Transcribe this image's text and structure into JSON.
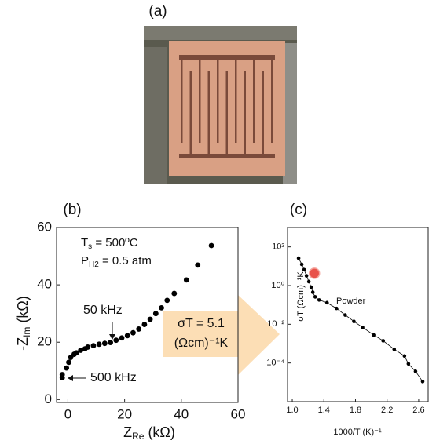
{
  "figure_a": {
    "label": "(a)"
  },
  "chart_data": [
    {
      "type": "scatter",
      "label": "(b)",
      "xlabel": {
        "main": "Z",
        "sub": "Re",
        "unit": " (kΩ)"
      },
      "ylabel": {
        "main": "-Z",
        "sub": "Im",
        "unit": " (kΩ)"
      },
      "xlim": [
        -4,
        60
      ],
      "xticks": [
        0,
        20,
        40,
        60
      ],
      "ylim": [
        -1,
        60
      ],
      "yticks": [
        0,
        20,
        40,
        60
      ],
      "series": [
        {
          "color": "#000000",
          "x": [
            -2,
            -2,
            -0.5,
            0.3,
            1,
            2.2,
            3,
            4.5,
            6,
            7,
            9,
            11,
            13,
            15,
            17,
            19,
            21,
            23,
            25,
            27,
            29,
            31,
            33,
            35,
            37.5,
            41.8,
            45.8,
            50.6
          ],
          "values": [
            7.6,
            8.7,
            11,
            13,
            14.7,
            15.8,
            16.3,
            17.2,
            17.7,
            18.3,
            18.8,
            19.3,
            19.6,
            19.9,
            20.7,
            21.5,
            22.3,
            23.3,
            24.6,
            26.2,
            28,
            30,
            32,
            34.6,
            37,
            41.7,
            46.9,
            53.7
          ]
        }
      ],
      "conditions": [
        {
          "main": "T",
          "sub": "s",
          "rest": " = 500ºC"
        },
        {
          "main": "P",
          "sub": "H2",
          "rest": " = 0.5 atm"
        }
      ],
      "annotations": [
        "50 kHz",
        "500 kHz"
      ],
      "callout": {
        "line1": "σT = 5.1",
        "line2": "(Ωcm)⁻¹K"
      }
    },
    {
      "type": "scatter",
      "label": "(c)",
      "log_y": true,
      "xlabel": "1000/T (K)⁻¹",
      "ylabel": "σT (Ωcm)⁻¹K",
      "xlim": [
        0.94,
        2.72
      ],
      "xticks": [
        {
          "value": 1,
          "label": "1.0"
        },
        1.4,
        1.8,
        2.2,
        2.6
      ],
      "ylim": [
        1e-06,
        1000
      ],
      "yticks": [
        {
          "value": 100,
          "label": "10²"
        },
        {
          "value": 1,
          "label": "10⁰"
        },
        {
          "value": 0.01,
          "label": "10⁻²"
        },
        {
          "value": 0.0001,
          "label": "10⁻⁴"
        }
      ],
      "series": [
        {
          "color": "#000000",
          "x": [
            1.08,
            1.12,
            1.15,
            1.18,
            1.21,
            1.24,
            1.26,
            1.29,
            1.34,
            1.44,
            1.56,
            1.67,
            1.78,
            1.89,
            2.03,
            2.15,
            2.29,
            2.42,
            2.47,
            2.56,
            2.65
          ],
          "values": [
            26,
            12.5,
            6.6,
            3.2,
            1.6,
            0.83,
            0.45,
            0.26,
            0.18,
            0.13,
            0.066,
            0.03,
            0.014,
            0.0069,
            0.0028,
            0.0014,
            0.00051,
            0.00023,
            9e-05,
            3.7e-05,
            1.1e-05
          ]
        }
      ],
      "highlight": {
        "x": 1.28,
        "y": 4.3,
        "color": "#e8524a"
      },
      "annotation": "Powder"
    }
  ]
}
